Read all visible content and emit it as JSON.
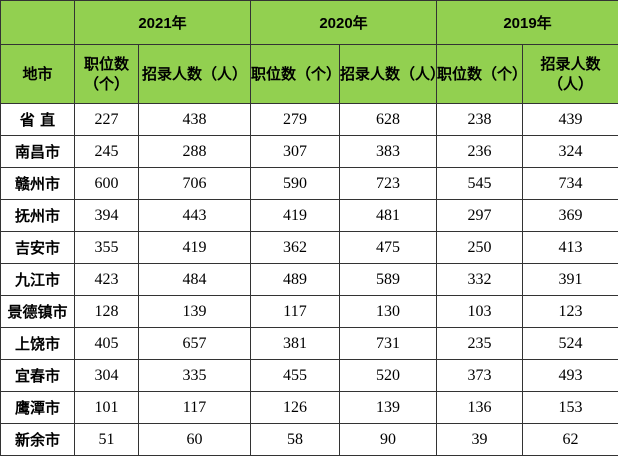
{
  "header": {
    "years": [
      "2021年",
      "2020年",
      "2019年"
    ],
    "region_label": "地市",
    "sub": [
      "职位数（个）",
      "招录人数（人）",
      "职位数（个）",
      "招录人数（人）",
      "职位数（个）",
      "招录人数（人）"
    ]
  },
  "rows": [
    {
      "city": "省  直",
      "v": [
        "227",
        "438",
        "279",
        "628",
        "238",
        "439"
      ]
    },
    {
      "city": "南昌市",
      "v": [
        "245",
        "288",
        "307",
        "383",
        "236",
        "324"
      ]
    },
    {
      "city": "赣州市",
      "v": [
        "600",
        "706",
        "590",
        "723",
        "545",
        "734"
      ]
    },
    {
      "city": "抚州市",
      "v": [
        "394",
        "443",
        "419",
        "481",
        "297",
        "369"
      ]
    },
    {
      "city": "吉安市",
      "v": [
        "355",
        "419",
        "362",
        "475",
        "250",
        "413"
      ]
    },
    {
      "city": "九江市",
      "v": [
        "423",
        "484",
        "489",
        "589",
        "332",
        "391"
      ]
    },
    {
      "city": "景德镇市",
      "v": [
        "128",
        "139",
        "117",
        "130",
        "103",
        "123"
      ]
    },
    {
      "city": "上饶市",
      "v": [
        "405",
        "657",
        "381",
        "731",
        "235",
        "524"
      ]
    },
    {
      "city": "宜春市",
      "v": [
        "304",
        "335",
        "455",
        "520",
        "373",
        "493"
      ]
    },
    {
      "city": "鹰潭市",
      "v": [
        "101",
        "117",
        "126",
        "139",
        "136",
        "153"
      ]
    },
    {
      "city": "新余市",
      "v": [
        "51",
        "60",
        "58",
        "90",
        "39",
        "62"
      ]
    }
  ],
  "colors": {
    "header_bg": "#92d050",
    "border": "#333333"
  }
}
